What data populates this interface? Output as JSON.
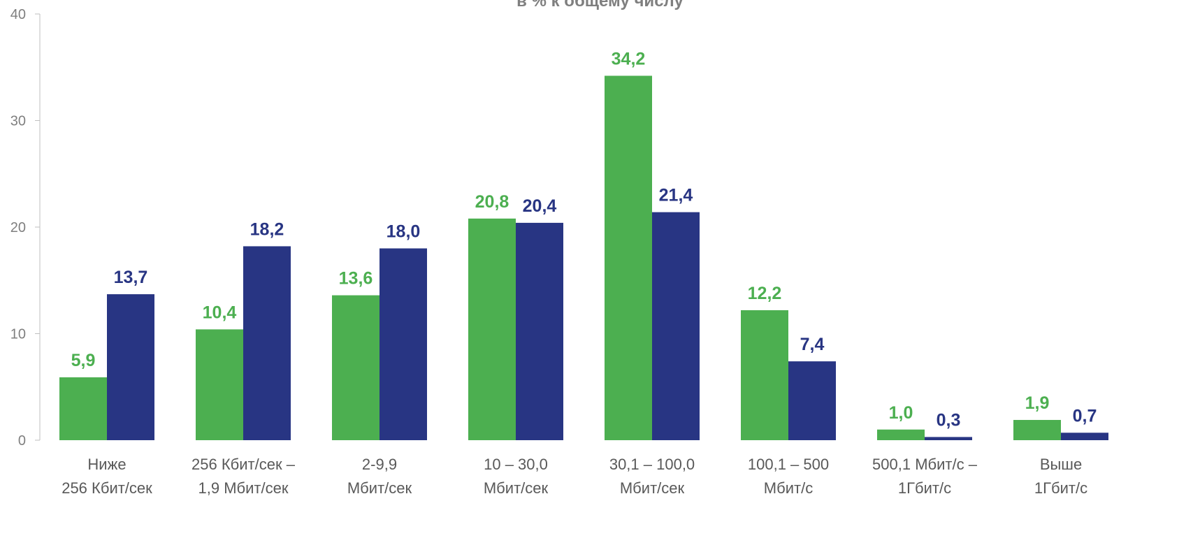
{
  "chart_data": {
    "type": "bar",
    "title": "в % к общему числу",
    "categories": [
      [
        "Ниже",
        "256 Кбит/сек"
      ],
      [
        "256 Кбит/сек –",
        "1,9 Мбит/сек"
      ],
      [
        "2-9,9",
        "Мбит/сек"
      ],
      [
        "10 – 30,0",
        "Мбит/сек"
      ],
      [
        "30,1 – 100,0",
        "Мбит/сек"
      ],
      [
        "100,1 – 500",
        "Мбит/с"
      ],
      [
        "500,1 Мбит/с –",
        "1Гбит/с"
      ],
      [
        "Выше",
        "1Гбит/с"
      ]
    ],
    "series": [
      {
        "color": "#4CAF50",
        "values": [
          5.9,
          10.4,
          13.6,
          20.8,
          34.2,
          12.2,
          1.0,
          1.9
        ],
        "labels": [
          "5,9",
          "10,4",
          "13,6",
          "20,8",
          "34,2",
          "12,2",
          "1,0",
          "1,9"
        ]
      },
      {
        "color": "#283583",
        "values": [
          13.7,
          18.2,
          18.0,
          20.4,
          21.4,
          7.4,
          0.3,
          0.7
        ],
        "labels": [
          "13,7",
          "18,2",
          "18,0",
          "20,4",
          "21,4",
          "7,4",
          "0,3",
          "0,7"
        ]
      }
    ],
    "ylim": [
      0,
      40
    ],
    "yticks": [
      {
        "value": 0,
        "label": "0"
      },
      {
        "value": 10,
        "label": "10"
      },
      {
        "value": 20,
        "label": "20"
      },
      {
        "value": 30,
        "label": "30"
      },
      {
        "value": 40,
        "label": "40"
      }
    ],
    "grid": false,
    "legend": "none"
  }
}
